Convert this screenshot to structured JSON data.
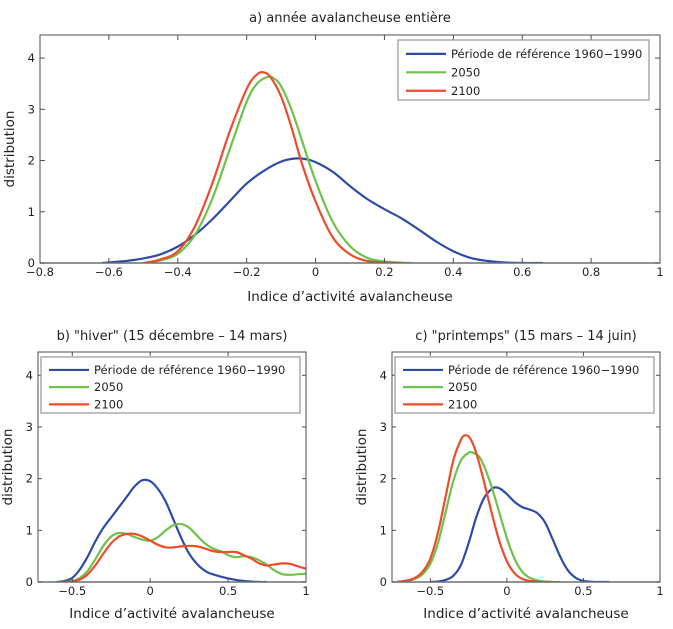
{
  "chart_data": [
    {
      "id": "a",
      "type": "line",
      "title": "a) année avalancheuse entière",
      "xlabel": "Indice d’activité avalancheuse",
      "ylabel": "distribution",
      "xlim": [
        -0.8,
        1.0
      ],
      "ylim": [
        0,
        4.45
      ],
      "xticks": [
        -0.8,
        -0.6,
        -0.4,
        -0.2,
        0,
        0.2,
        0.4,
        0.6,
        0.8,
        1
      ],
      "xtick_labels": [
        "−0.8",
        "−0.6",
        "−0.4",
        "−0.2",
        "0",
        "0.2",
        "0.4",
        "0.6",
        "0.8",
        "1"
      ],
      "yticks": [
        0,
        1,
        2,
        3,
        4
      ],
      "ytick_labels": [
        "0",
        "1",
        "2",
        "3",
        "4"
      ],
      "grid": false,
      "legend_position": "top-right",
      "series": [
        {
          "name": "Période de référence 1960−1990",
          "color": "#2e4ca6",
          "x": [
            -0.62,
            -0.55,
            -0.5,
            -0.45,
            -0.4,
            -0.35,
            -0.3,
            -0.25,
            -0.2,
            -0.15,
            -0.1,
            -0.06,
            -0.03,
            0,
            0.05,
            0.1,
            0.15,
            0.2,
            0.25,
            0.3,
            0.35,
            0.4,
            0.45,
            0.5,
            0.55,
            0.6,
            0.66
          ],
          "y": [
            0.0,
            0.04,
            0.09,
            0.17,
            0.32,
            0.55,
            0.85,
            1.2,
            1.55,
            1.8,
            1.98,
            2.04,
            2.03,
            1.97,
            1.78,
            1.5,
            1.25,
            1.05,
            0.87,
            0.65,
            0.42,
            0.23,
            0.1,
            0.04,
            0.01,
            0.0,
            0.0
          ]
        },
        {
          "name": "2050",
          "color": "#6cc24a",
          "x": [
            -0.5,
            -0.45,
            -0.4,
            -0.35,
            -0.3,
            -0.25,
            -0.2,
            -0.17,
            -0.14,
            -0.12,
            -0.1,
            -0.07,
            -0.04,
            0,
            0.05,
            0.1,
            0.15,
            0.2,
            0.25,
            0.28
          ],
          "y": [
            0.0,
            0.05,
            0.18,
            0.55,
            1.25,
            2.2,
            3.15,
            3.5,
            3.63,
            3.6,
            3.45,
            3.0,
            2.4,
            1.6,
            0.8,
            0.33,
            0.1,
            0.03,
            0.005,
            0.0
          ]
        },
        {
          "name": "2100",
          "color": "#ee4b2b",
          "x": [
            -0.5,
            -0.45,
            -0.4,
            -0.35,
            -0.3,
            -0.25,
            -0.2,
            -0.17,
            -0.15,
            -0.13,
            -0.1,
            -0.07,
            -0.04,
            0,
            0.05,
            0.1,
            0.15,
            0.2,
            0.25
          ],
          "y": [
            0.0,
            0.07,
            0.23,
            0.72,
            1.55,
            2.55,
            3.4,
            3.68,
            3.72,
            3.62,
            3.25,
            2.65,
            1.95,
            1.2,
            0.5,
            0.17,
            0.04,
            0.01,
            0.0
          ]
        }
      ]
    },
    {
      "id": "b",
      "type": "line",
      "title": "b) \"hiver\" (15 décembre – 14 mars)",
      "xlabel": "Indice d’activité avalancheuse",
      "ylabel": "distribution",
      "xlim": [
        -0.72,
        1.0
      ],
      "ylim": [
        0,
        4.45
      ],
      "xticks": [
        -0.5,
        0,
        0.5,
        1
      ],
      "xtick_labels": [
        "−0.5",
        "0",
        "0.5",
        "1"
      ],
      "yticks": [
        0,
        1,
        2,
        3,
        4
      ],
      "ytick_labels": [
        "0",
        "1",
        "2",
        "3",
        "4"
      ],
      "grid": false,
      "legend_position": "top",
      "series": [
        {
          "name": "Période de référence 1960−1990",
          "color": "#2e4ca6",
          "x": [
            -0.6,
            -0.55,
            -0.5,
            -0.45,
            -0.4,
            -0.35,
            -0.3,
            -0.25,
            -0.2,
            -0.15,
            -0.1,
            -0.05,
            0,
            0.05,
            0.1,
            0.15,
            0.2,
            0.25,
            0.3,
            0.35,
            0.4,
            0.5,
            0.6,
            0.7,
            0.75
          ],
          "y": [
            0.0,
            0.02,
            0.08,
            0.25,
            0.5,
            0.8,
            1.05,
            1.25,
            1.45,
            1.65,
            1.85,
            1.97,
            1.95,
            1.8,
            1.55,
            1.2,
            0.85,
            0.55,
            0.35,
            0.22,
            0.15,
            0.07,
            0.02,
            0.0,
            0.0
          ]
        },
        {
          "name": "2050",
          "color": "#6cc24a",
          "x": [
            -0.55,
            -0.5,
            -0.45,
            -0.4,
            -0.35,
            -0.3,
            -0.25,
            -0.2,
            -0.15,
            -0.1,
            -0.05,
            0,
            0.05,
            0.1,
            0.15,
            0.2,
            0.25,
            0.3,
            0.35,
            0.4,
            0.45,
            0.5,
            0.55,
            0.6,
            0.65,
            0.7,
            0.75,
            0.8,
            0.85,
            0.9,
            0.95,
            1.0
          ],
          "y": [
            0.0,
            0.02,
            0.08,
            0.22,
            0.45,
            0.7,
            0.88,
            0.95,
            0.93,
            0.87,
            0.82,
            0.8,
            0.87,
            1.0,
            1.1,
            1.12,
            1.05,
            0.9,
            0.75,
            0.65,
            0.6,
            0.52,
            0.48,
            0.5,
            0.48,
            0.42,
            0.33,
            0.22,
            0.15,
            0.14,
            0.15,
            0.16
          ]
        },
        {
          "name": "2100",
          "color": "#ee4b2b",
          "x": [
            -0.55,
            -0.5,
            -0.45,
            -0.4,
            -0.35,
            -0.3,
            -0.25,
            -0.2,
            -0.15,
            -0.1,
            -0.05,
            0,
            0.05,
            0.1,
            0.15,
            0.2,
            0.25,
            0.3,
            0.35,
            0.4,
            0.45,
            0.5,
            0.55,
            0.6,
            0.65,
            0.7,
            0.75,
            0.8,
            0.85,
            0.9,
            0.95,
            1.0
          ],
          "y": [
            0.0,
            0.01,
            0.05,
            0.15,
            0.33,
            0.55,
            0.75,
            0.88,
            0.93,
            0.93,
            0.88,
            0.8,
            0.72,
            0.67,
            0.67,
            0.69,
            0.7,
            0.69,
            0.65,
            0.6,
            0.58,
            0.58,
            0.58,
            0.52,
            0.45,
            0.36,
            0.32,
            0.34,
            0.36,
            0.35,
            0.3,
            0.26
          ]
        }
      ]
    },
    {
      "id": "c",
      "type": "line",
      "title": "c) \"printemps\" (15 mars – 14 juin)",
      "xlabel": "Indice d’activité avalancheuse",
      "ylabel": "distribution",
      "xlim": [
        -0.75,
        1.0
      ],
      "ylim": [
        0,
        4.45
      ],
      "xticks": [
        -0.5,
        0,
        0.5,
        1
      ],
      "xtick_labels": [
        "−0.5",
        "0",
        "0.5",
        "1"
      ],
      "yticks": [
        0,
        1,
        2,
        3,
        4
      ],
      "ytick_labels": [
        "0",
        "1",
        "2",
        "3",
        "4"
      ],
      "grid": false,
      "legend_position": "top",
      "series": [
        {
          "name": "Période de référence 1960−1990",
          "color": "#2e4ca6",
          "x": [
            -0.5,
            -0.45,
            -0.4,
            -0.35,
            -0.3,
            -0.25,
            -0.2,
            -0.15,
            -0.1,
            -0.07,
            -0.04,
            0,
            0.05,
            0.1,
            0.15,
            0.2,
            0.25,
            0.3,
            0.35,
            0.4,
            0.45,
            0.5,
            0.55,
            0.6,
            0.67
          ],
          "y": [
            0.0,
            0.01,
            0.04,
            0.12,
            0.33,
            0.75,
            1.25,
            1.62,
            1.8,
            1.83,
            1.8,
            1.7,
            1.55,
            1.45,
            1.4,
            1.33,
            1.15,
            0.82,
            0.48,
            0.22,
            0.08,
            0.02,
            0.005,
            0.0,
            0.0
          ]
        },
        {
          "name": "2050",
          "color": "#6cc24a",
          "x": [
            -0.72,
            -0.65,
            -0.6,
            -0.55,
            -0.5,
            -0.45,
            -0.4,
            -0.35,
            -0.3,
            -0.25,
            -0.22,
            -0.18,
            -0.15,
            -0.1,
            -0.05,
            0,
            0.05,
            0.1,
            0.15,
            0.2,
            0.25,
            0.3,
            0.35
          ],
          "y": [
            0.0,
            0.02,
            0.06,
            0.15,
            0.35,
            0.75,
            1.35,
            1.95,
            2.35,
            2.5,
            2.5,
            2.42,
            2.25,
            1.85,
            1.35,
            0.85,
            0.45,
            0.2,
            0.08,
            0.03,
            0.01,
            0.0,
            0.0
          ]
        },
        {
          "name": "2100",
          "color": "#ee4b2b",
          "x": [
            -0.72,
            -0.65,
            -0.6,
            -0.55,
            -0.5,
            -0.45,
            -0.4,
            -0.35,
            -0.3,
            -0.27,
            -0.24,
            -0.2,
            -0.15,
            -0.1,
            -0.05,
            0,
            0.05,
            0.1,
            0.15,
            0.2,
            0.25,
            0.3
          ],
          "y": [
            0.0,
            0.03,
            0.08,
            0.2,
            0.45,
            0.95,
            1.65,
            2.35,
            2.75,
            2.84,
            2.78,
            2.5,
            1.95,
            1.35,
            0.8,
            0.4,
            0.17,
            0.06,
            0.02,
            0.005,
            0.0,
            0.0
          ]
        }
      ]
    }
  ]
}
